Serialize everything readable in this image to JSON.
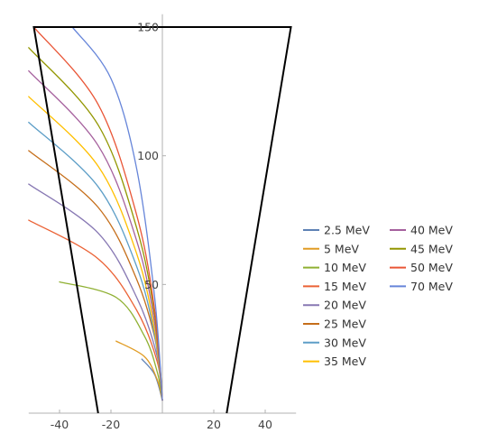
{
  "chart_data": {
    "type": "line",
    "title": "",
    "xlabel": "",
    "ylabel": "",
    "xlim": [
      -52,
      52
    ],
    "ylim": [
      0,
      155
    ],
    "x_ticks": [
      -40,
      -20,
      20,
      40
    ],
    "y_ticks": [
      50,
      100,
      150
    ],
    "x_tick_labels": [
      "-40",
      "-20",
      "20",
      "40"
    ],
    "y_tick_labels": [
      "50",
      "100",
      "150"
    ],
    "grid": false,
    "legend_position": "right",
    "boundary": {
      "color": "#000000",
      "points": [
        [
          -25,
          0
        ],
        [
          -50,
          150
        ],
        [
          50,
          150
        ],
        [
          25,
          0
        ]
      ]
    },
    "series": [
      {
        "name": "2.5 MeV",
        "color": "#5e81b5",
        "points": [
          [
            0,
            5
          ],
          [
            -3,
            15
          ],
          [
            -8,
            21
          ]
        ]
      },
      {
        "name": "5 MeV",
        "color": "#e19c24",
        "points": [
          [
            0,
            5
          ],
          [
            -2,
            13
          ],
          [
            -7,
            22
          ],
          [
            -18,
            28
          ]
        ]
      },
      {
        "name": "10 MeV",
        "color": "#8fb032",
        "points": [
          [
            0,
            5
          ],
          [
            -2,
            16
          ],
          [
            -7,
            30
          ],
          [
            -18,
            45
          ],
          [
            -40,
            51
          ]
        ]
      },
      {
        "name": "15 MeV",
        "color": "#eb6235",
        "points": [
          [
            0,
            5
          ],
          [
            -2,
            20
          ],
          [
            -10,
            40
          ],
          [
            -25,
            60
          ],
          [
            -52,
            75
          ]
        ]
      },
      {
        "name": "20 MeV",
        "color": "#8778b3",
        "points": [
          [
            0,
            5
          ],
          [
            -2,
            22
          ],
          [
            -10,
            45
          ],
          [
            -25,
            70
          ],
          [
            -52,
            89
          ]
        ]
      },
      {
        "name": "25 MeV",
        "color": "#c56e1a",
        "points": [
          [
            0,
            5
          ],
          [
            -2,
            25
          ],
          [
            -10,
            52
          ],
          [
            -25,
            80
          ],
          [
            -52,
            102
          ]
        ]
      },
      {
        "name": "30 MeV",
        "color": "#5d9ec7",
        "points": [
          [
            0,
            5
          ],
          [
            -3,
            30
          ],
          [
            -10,
            57
          ],
          [
            -25,
            88
          ],
          [
            -52,
            113
          ]
        ]
      },
      {
        "name": "35 MeV",
        "color": "#ffbf00",
        "points": [
          [
            0,
            5
          ],
          [
            -3,
            32
          ],
          [
            -10,
            62
          ],
          [
            -25,
            96
          ],
          [
            -52,
            123
          ]
        ]
      },
      {
        "name": "40 MeV",
        "color": "#a5609d",
        "points": [
          [
            0,
            5
          ],
          [
            -3,
            35
          ],
          [
            -10,
            67
          ],
          [
            -25,
            104
          ],
          [
            -52,
            133
          ]
        ]
      },
      {
        "name": "45 MeV",
        "color": "#929600",
        "points": [
          [
            0,
            5
          ],
          [
            -3,
            38
          ],
          [
            -10,
            72
          ],
          [
            -25,
            112
          ],
          [
            -52,
            142
          ]
        ]
      },
      {
        "name": "50 MeV",
        "color": "#e95536",
        "points": [
          [
            0,
            5
          ],
          [
            -3,
            40
          ],
          [
            -10,
            77
          ],
          [
            -25,
            120
          ],
          [
            -50,
            150
          ]
        ]
      },
      {
        "name": "70 MeV",
        "color": "#6685d9",
        "points": [
          [
            0,
            5
          ],
          [
            -3,
            45
          ],
          [
            -10,
            95
          ],
          [
            -20,
            130
          ],
          [
            -35,
            150
          ]
        ]
      }
    ]
  }
}
